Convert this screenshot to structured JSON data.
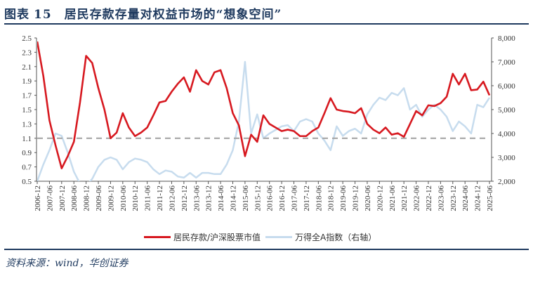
{
  "title": {
    "prefix": "图表",
    "number": "15",
    "text": "居民存款存量对权益市场的“想象空间”"
  },
  "source": "资料来源：wind，华创证券",
  "colors": {
    "red": "#d71920",
    "blue": "#c7dcee",
    "dash": "#a6a6a6",
    "title": "#1f3a5f"
  },
  "chart_data": {
    "type": "line",
    "title": "",
    "legend_position": "bottom",
    "grid": false,
    "x_tick_labels": [
      "2006-12",
      "2007-06",
      "2007-12",
      "2008-06",
      "2008-12",
      "2009-06",
      "2009-12",
      "2010-06",
      "2010-12",
      "2011-06",
      "2011-12",
      "2012-06",
      "2012-12",
      "2013-06",
      "2013-12",
      "2014-06",
      "2014-12",
      "2015-06",
      "2015-12",
      "2016-06",
      "2016-12",
      "2017-06",
      "2017-12",
      "2018-06",
      "2018-12",
      "2019-06",
      "2019-12",
      "2020-06",
      "2020-12",
      "2021-06",
      "2021-12",
      "2022-06",
      "2022-12",
      "2023-06",
      "2023-12",
      "2024-06",
      "2024-12",
      "2025-06"
    ],
    "x": [
      "2006-12",
      "2007-03",
      "2007-06",
      "2007-09",
      "2007-12",
      "2008-03",
      "2008-06",
      "2008-09",
      "2008-12",
      "2009-03",
      "2009-06",
      "2009-09",
      "2009-12",
      "2010-03",
      "2010-06",
      "2010-09",
      "2010-12",
      "2011-03",
      "2011-06",
      "2011-09",
      "2011-12",
      "2012-03",
      "2012-06",
      "2012-09",
      "2012-12",
      "2013-03",
      "2013-06",
      "2013-09",
      "2013-12",
      "2014-03",
      "2014-06",
      "2014-09",
      "2014-12",
      "2015-03",
      "2015-06",
      "2015-09",
      "2015-12",
      "2016-03",
      "2016-06",
      "2016-09",
      "2016-12",
      "2017-03",
      "2017-06",
      "2017-09",
      "2017-12",
      "2018-03",
      "2018-06",
      "2018-09",
      "2018-12",
      "2019-03",
      "2019-06",
      "2019-09",
      "2019-12",
      "2020-03",
      "2020-06",
      "2020-09",
      "2020-12",
      "2021-03",
      "2021-06",
      "2021-09",
      "2021-12",
      "2022-03",
      "2022-06",
      "2022-09",
      "2022-12",
      "2023-03",
      "2023-06",
      "2023-09",
      "2023-12",
      "2024-03",
      "2024-06",
      "2024-09",
      "2024-12",
      "2025-03",
      "2025-06"
    ],
    "y_left": {
      "range": [
        0.5,
        2.5
      ],
      "ticks": [
        "0.5",
        "0.7",
        "0.9",
        "1.1",
        "1.3",
        "1.5",
        "1.7",
        "1.9",
        "2.1",
        "2.3",
        "2.5"
      ]
    },
    "y_right": {
      "range": [
        2000,
        8000
      ],
      "ticks": [
        "2,000",
        "3,000",
        "4,000",
        "5,000",
        "6,000",
        "7,000",
        "8,000"
      ]
    },
    "reference_line": {
      "axis": "left",
      "value": 1.1,
      "style": "dashed"
    },
    "series": [
      {
        "name": "居民存款/沪深股票市值",
        "axis": "left",
        "color": "#d71920",
        "values": [
          2.45,
          1.97,
          1.35,
          1.0,
          0.68,
          0.85,
          1.05,
          1.6,
          2.25,
          2.15,
          1.8,
          1.5,
          1.1,
          1.18,
          1.45,
          1.25,
          1.13,
          1.18,
          1.25,
          1.42,
          1.6,
          1.62,
          1.75,
          1.86,
          1.95,
          1.75,
          2.05,
          1.9,
          1.85,
          2.02,
          2.05,
          1.8,
          1.45,
          1.28,
          0.85,
          1.15,
          1.05,
          1.42,
          1.3,
          1.25,
          1.2,
          1.22,
          1.2,
          1.13,
          1.13,
          1.2,
          1.25,
          1.45,
          1.66,
          1.5,
          1.48,
          1.47,
          1.45,
          1.52,
          1.3,
          1.22,
          1.17,
          1.25,
          1.15,
          1.17,
          1.12,
          1.3,
          1.48,
          1.42,
          1.56,
          1.55,
          1.59,
          1.68,
          2.0,
          1.85,
          2.0,
          1.77,
          1.78,
          1.89,
          1.7
        ]
      },
      {
        "name": "万得全A指数（右轴）",
        "axis": "right",
        "color": "#c7dcee",
        "values": [
          2000,
          2700,
          3300,
          4000,
          3900,
          3200,
          2400,
          1900,
          1800,
          2100,
          2600,
          2900,
          3000,
          2900,
          2500,
          2800,
          2950,
          2900,
          2800,
          2500,
          2300,
          2450,
          2400,
          2200,
          2150,
          2350,
          2150,
          2350,
          2350,
          2300,
          2300,
          2700,
          3300,
          4500,
          7000,
          4000,
          4800,
          3800,
          4000,
          4150,
          4300,
          4350,
          4100,
          4500,
          4600,
          4500,
          4000,
          3700,
          3300,
          4300,
          3900,
          4100,
          4200,
          4000,
          4800,
          5200,
          5500,
          5400,
          5700,
          5600,
          5900,
          5000,
          5200,
          4700,
          5000,
          5200,
          5000,
          4700,
          4100,
          4500,
          4300,
          4000,
          5200,
          5100,
          5500
        ]
      }
    ]
  }
}
